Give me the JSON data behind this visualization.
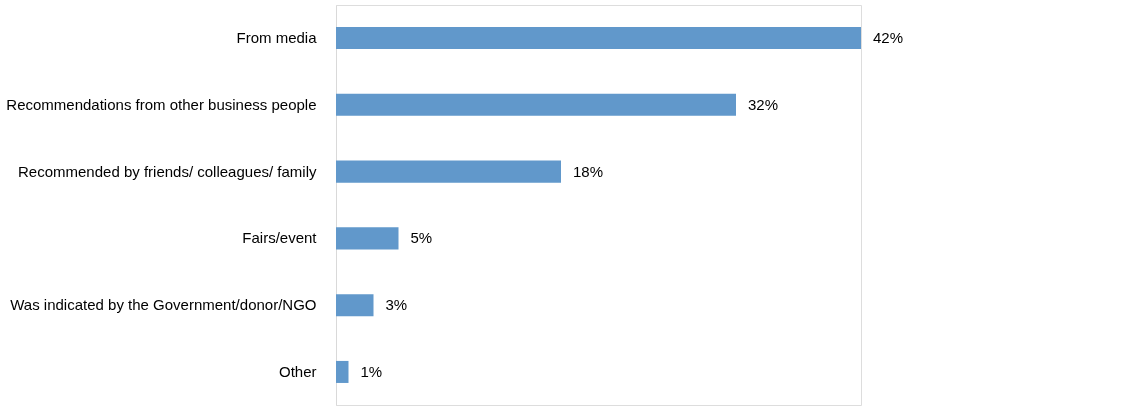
{
  "chart_data": {
    "type": "bar",
    "orientation": "horizontal",
    "categories": [
      "From media",
      "Recommendations from other business people",
      "Recommended by friends/ colleagues/ family",
      "Fairs/event",
      "Was indicated by the Government/donor/NGO",
      "Other"
    ],
    "values": [
      42,
      32,
      18,
      5,
      3,
      1
    ],
    "value_labels": [
      "42%",
      "32%",
      "18%",
      "5%",
      "3%",
      "1%"
    ],
    "color": "#6198cb",
    "grid": false
  }
}
